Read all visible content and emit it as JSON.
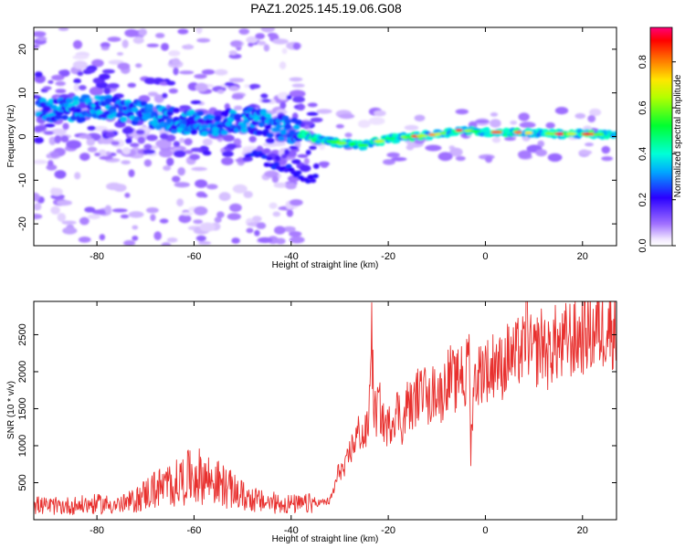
{
  "figure": {
    "title": "PAZ1.2025.145.19.06.G08"
  },
  "chart_data": [
    {
      "type": "heatmap",
      "xlabel": "Height of straight line (km)",
      "ylabel": "Frequency (Hz)",
      "xlim": [
        -93,
        27
      ],
      "ylim": [
        -25,
        25
      ],
      "xticks": [
        "-80",
        "-60",
        "-40",
        "-20",
        "0",
        "20"
      ],
      "yticks": [
        "-20",
        "-10",
        "0",
        "10",
        "20"
      ],
      "colorbar": {
        "label": "Normalized spectral amplitude",
        "ticks": [
          "0.0",
          "0.2",
          "0.4",
          "0.6",
          "0.8"
        ],
        "range": [
          0,
          0.95
        ]
      },
      "ridge": {
        "x": [
          -90,
          -85,
          -80,
          -75,
          -70,
          -65,
          -60,
          -55,
          -50,
          -45,
          -40,
          -35,
          -30,
          -25,
          -20,
          -15,
          -10,
          -5,
          0,
          5,
          10,
          15,
          20,
          25
        ],
        "y": [
          6,
          6,
          7,
          6,
          5,
          4,
          3,
          3,
          4,
          3,
          1.5,
          -0.5,
          -1.5,
          -2,
          -0.5,
          0,
          0.5,
          1.5,
          1,
          1,
          0.8,
          0.6,
          0.6,
          0.4
        ]
      },
      "branch": {
        "x": [
          -48,
          -44,
          -40,
          -36
        ],
        "y": [
          -4,
          -6,
          -8,
          -10
        ]
      }
    },
    {
      "type": "line",
      "xlabel": "Height of straight line (km)",
      "ylabel": "SNR (10 * v/v)",
      "xlim": [
        -93,
        27
      ],
      "ylim": [
        0,
        2950
      ],
      "xticks": [
        "-80",
        "-60",
        "-40",
        "-20",
        "0",
        "20"
      ],
      "yticks": [
        "500",
        "1000",
        "1500",
        "2000",
        "2500"
      ],
      "series": [
        {
          "color": "#e8302e",
          "x": [
            -93,
            -90,
            -85,
            -80,
            -75,
            -72,
            -70,
            -68,
            -66,
            -64,
            -62,
            -60,
            -58,
            -56,
            -54,
            -52,
            -50,
            -48,
            -46,
            -44,
            -42,
            -40,
            -38,
            -36,
            -34,
            -32,
            -31,
            -30,
            -29,
            -28,
            -27,
            -26,
            -25,
            -24,
            -23.5,
            -23,
            -22.5,
            -22,
            -21,
            -20,
            -19,
            -18,
            -17,
            -16,
            -15,
            -14,
            -13,
            -12.5,
            -12,
            -11,
            -10,
            -9,
            -8,
            -7,
            -6,
            -5,
            -4,
            -3.5,
            -3,
            -2.5,
            -2,
            -1,
            0,
            1,
            2,
            3,
            4,
            5,
            6,
            7,
            8,
            8.5,
            9,
            10,
            11,
            12,
            13,
            14,
            15,
            16,
            17,
            18,
            19,
            20,
            21,
            22,
            23,
            24,
            25,
            26,
            27
          ],
          "y": [
            200,
            180,
            190,
            210,
            200,
            260,
            350,
            420,
            450,
            480,
            550,
            600,
            580,
            520,
            460,
            390,
            320,
            280,
            240,
            230,
            220,
            210,
            200,
            220,
            230,
            250,
            450,
            700,
            650,
            900,
            1050,
            1200,
            1100,
            1300,
            2750,
            1500,
            1400,
            1600,
            1300,
            1250,
            1400,
            1500,
            1250,
            1600,
            1500,
            1700,
            1650,
            2600,
            1500,
            1700,
            1800,
            1650,
            1900,
            1950,
            1800,
            2100,
            1700,
            2700,
            900,
            1800,
            1900,
            2000,
            2100,
            1950,
            2200,
            2050,
            2100,
            2250,
            2150,
            2300,
            2250,
            2900,
            2300,
            2200,
            2350,
            2400,
            2200,
            2400,
            2350,
            2300,
            2500,
            2400,
            2450,
            2500,
            2550,
            2500,
            2600,
            2550,
            2650,
            2600,
            2650
          ]
        }
      ]
    }
  ]
}
